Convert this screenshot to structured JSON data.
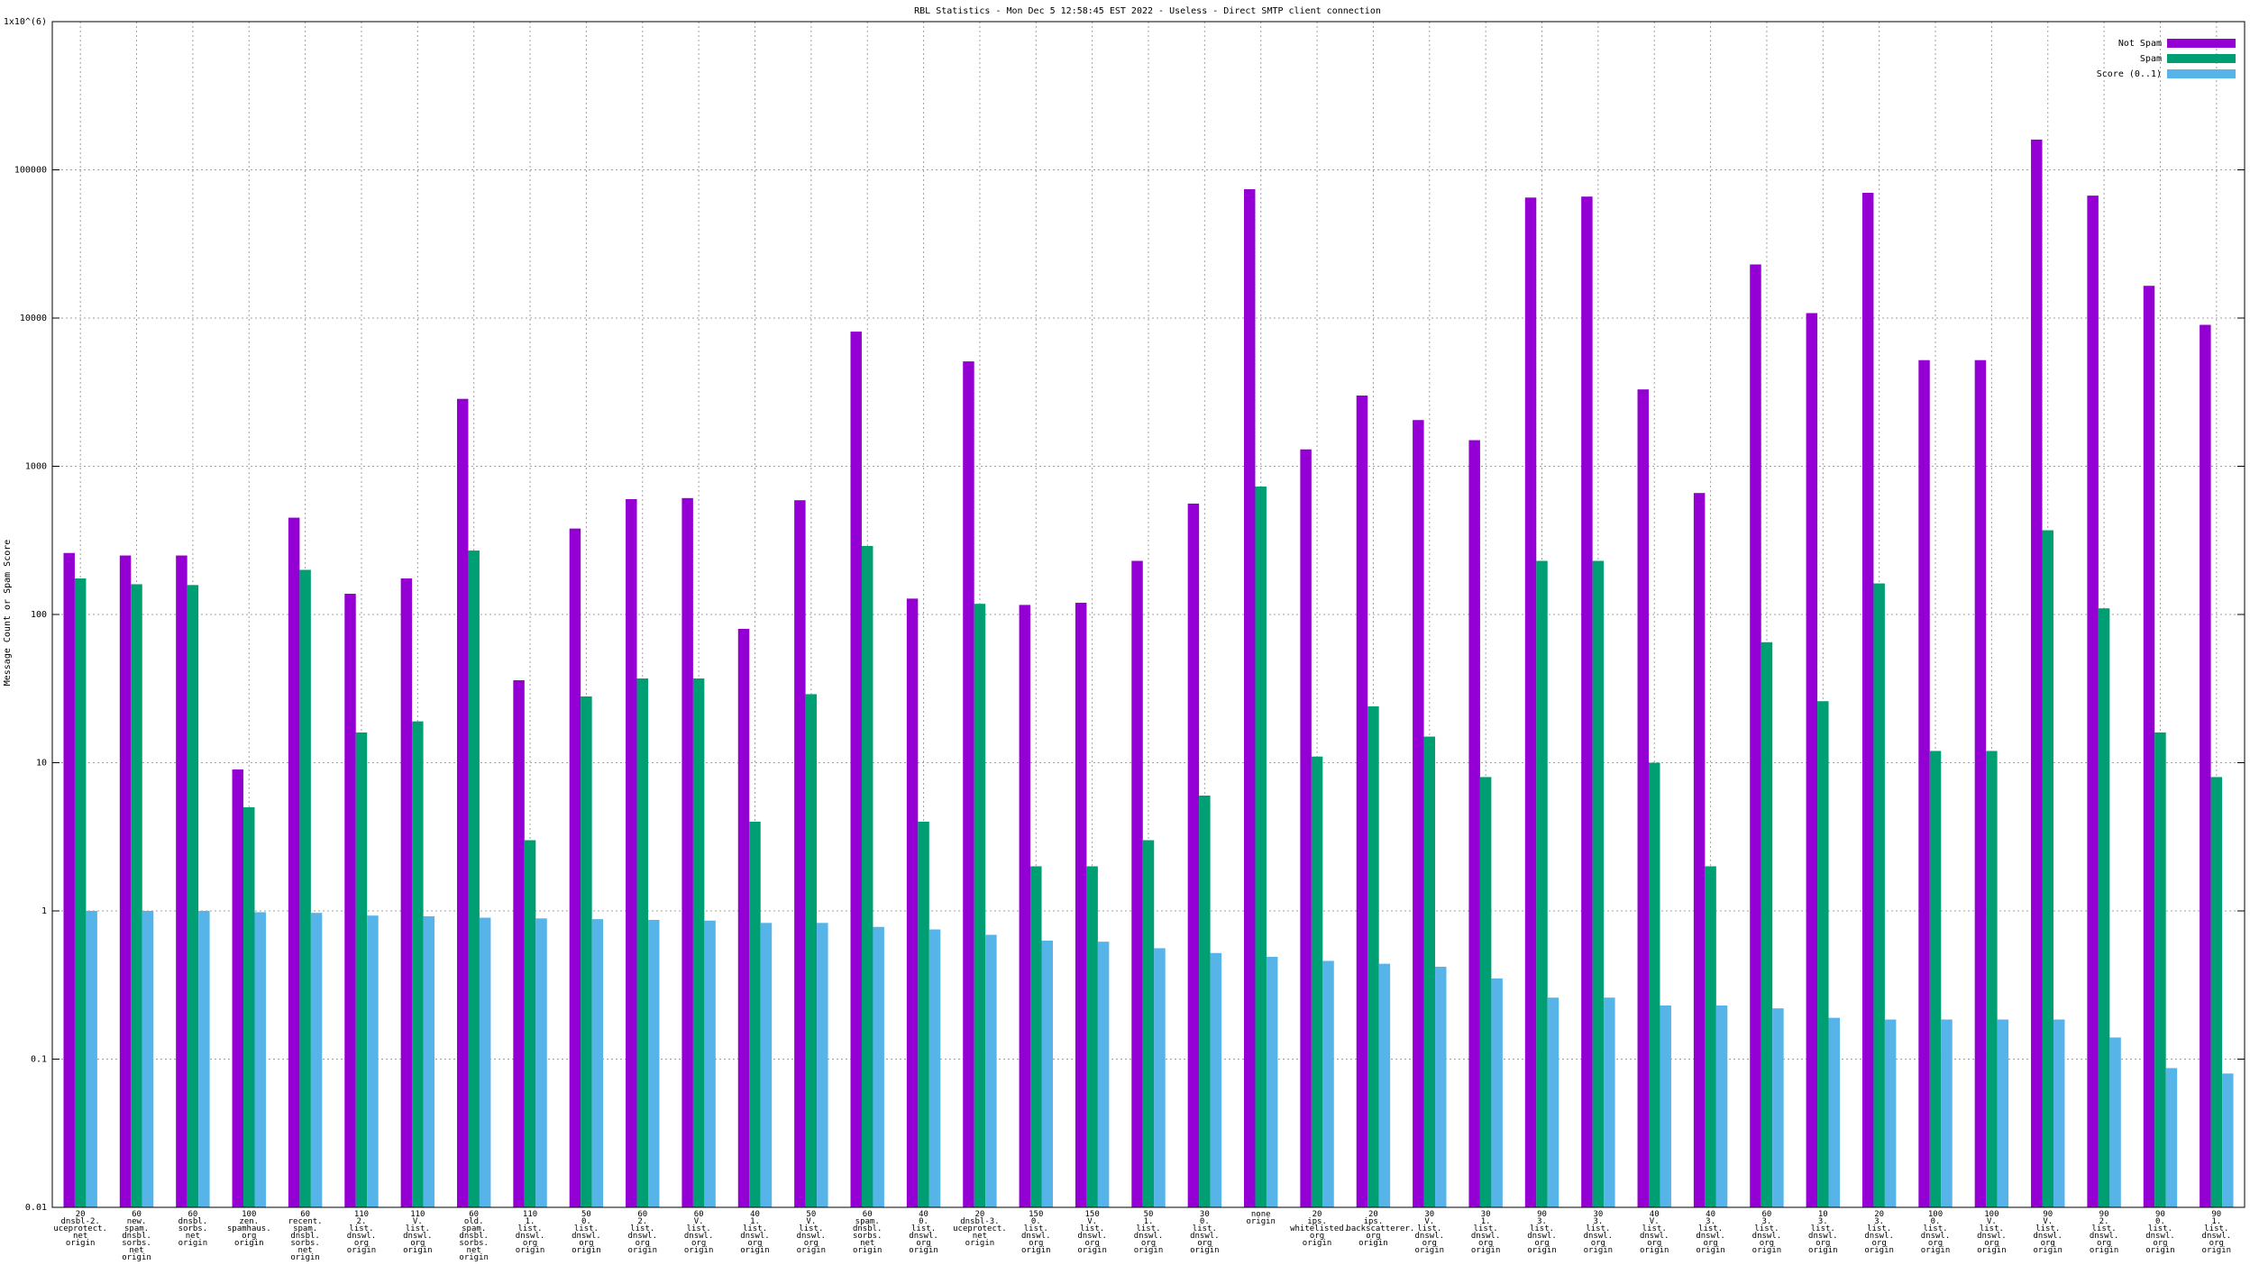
{
  "chart_data": {
    "type": "bar",
    "title": "RBL Statistics - Mon Dec  5 12:58:45 EST 2022 - Useless - Direct SMTP client connection",
    "y_label": "Message Count or Spam Score",
    "categories": [
      "20\ndnsbl-2.\nuceprotect.\nnet\norigin",
      "60\nnew.\nspam.\ndnsbl.\nsorbs.\nnet\norigin",
      "60\ndnsbl.\nsorbs.\nnet\norigin",
      "100\nzen.\nspamhaus.\norg\norigin",
      "60\nrecent.\nspam.\ndnsbl.\nsorbs.\nnet\norigin",
      "110\n2.\nlist.\ndnswl.\norg\norigin",
      "110\nV.\nlist.\ndnswl.\norg\norigin",
      "60\nold.\nspam.\ndnsbl.\nsorbs.\nnet\norigin",
      "110\n1.\nlist.\ndnswl.\norg\norigin",
      "50\n0.\nlist.\ndnswl.\norg\norigin",
      "60\n2.\nlist.\ndnswl.\norg\norigin",
      "60\nV.\nlist.\ndnswl.\norg\norigin",
      "40\n1.\nlist.\ndnswl.\norg\norigin",
      "50\nV.\nlist.\ndnswl.\norg\norigin",
      "60\nspam.\ndnsbl.\nsorbs.\nnet\norigin",
      "40\n0.\nlist.\ndnswl.\norg\norigin",
      "20\ndnsbl-3.\nuceprotect.\nnet\norigin",
      "150\n0.\nlist.\ndnswl.\norg\norigin",
      "150\nV.\nlist.\ndnswl.\norg\norigin",
      "50\n1.\nlist.\ndnswl.\norg\norigin",
      "30\n0.\nlist.\ndnswl.\norg\norigin",
      "none\norigin",
      "20\nips.\nwhitelisted.\norg\norigin",
      "20\nips.\nbackscatterer.\norg\norigin",
      "30\nV.\nlist.\ndnswl.\norg\norigin",
      "30\n1.\nlist.\ndnswl.\norg\norigin",
      "90\n3.\nlist.\ndnswl.\norg\norigin",
      "30\n3.\nlist.\ndnswl.\norg\norigin",
      "40\nV.\nlist.\ndnswl.\norg\norigin",
      "40\n3.\nlist.\ndnswl.\norg\norigin",
      "60\n3.\nlist.\ndnswl.\norg\norigin",
      "10\n3.\nlist.\ndnswl.\norg\norigin",
      "20\n3.\nlist.\ndnswl.\norg\norigin",
      "100\n0.\nlist.\ndnswl.\norg\norigin",
      "100\nV.\nlist.\ndnswl.\norg\norigin",
      "90\nV.\nlist.\ndnswl.\norg\norigin",
      "90\n2.\nlist.\ndnswl.\norg\norigin",
      "90\n0.\nlist.\ndnswl.\norg\norigin",
      "90\n1.\nlist.\ndnswl.\norg\norigin"
    ],
    "series": [
      {
        "name": "Not Spam",
        "color": "#9400d3",
        "values": [
          260,
          250,
          250,
          9,
          450,
          138,
          175,
          2850,
          36,
          380,
          600,
          610,
          80,
          590,
          8100,
          128,
          5100,
          116,
          120,
          230,
          560,
          74000,
          1300,
          3000,
          2050,
          1500,
          65000,
          66000,
          3300,
          660,
          23000,
          10800,
          70000,
          5200,
          5200,
          160000,
          67000,
          16500,
          9000
        ]
      },
      {
        "name": "Spam",
        "color": "#009e73",
        "values": [
          175,
          160,
          158,
          5,
          200,
          16,
          19,
          270,
          3,
          28,
          37,
          37,
          4,
          29,
          290,
          4,
          118,
          2,
          2,
          3,
          6,
          730,
          11,
          24,
          15,
          8,
          230,
          230,
          10,
          2,
          65,
          26,
          162,
          12,
          12,
          370,
          110,
          16,
          8
        ]
      },
      {
        "name": "Score (0..1)",
        "color": "#56b4e9",
        "values": [
          1.0,
          1.0,
          1.0,
          0.98,
          0.97,
          0.93,
          0.92,
          0.9,
          0.89,
          0.88,
          0.87,
          0.86,
          0.83,
          0.83,
          0.78,
          0.75,
          0.69,
          0.63,
          0.62,
          0.56,
          0.52,
          0.49,
          0.46,
          0.44,
          0.42,
          0.35,
          0.26,
          0.26,
          0.23,
          0.23,
          0.22,
          0.19,
          0.185,
          0.185,
          0.185,
          0.185,
          0.14,
          0.087,
          0.08
        ]
      }
    ],
    "ylim": [
      0.01,
      1000000
    ],
    "yticks": [
      0.01,
      0.1,
      1,
      10,
      100,
      1000,
      10000,
      100000,
      {
        "value": 1000000,
        "label": "1x10^(6)"
      }
    ],
    "log_scale": true,
    "grid": true,
    "legend": "top-right"
  }
}
